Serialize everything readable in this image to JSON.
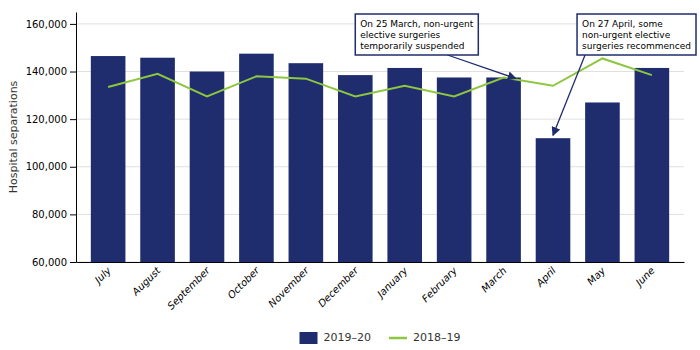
{
  "chart_data": {
    "type": "bar",
    "categories": [
      "July",
      "August",
      "September",
      "October",
      "November",
      "December",
      "January",
      "February",
      "March",
      "April",
      "May",
      "June"
    ],
    "series": [
      {
        "name": "2019–20",
        "type": "bar",
        "color": "#1f2d6e",
        "values": [
          146500,
          145800,
          140000,
          147500,
          143500,
          138500,
          141500,
          137500,
          137500,
          112000,
          127000,
          141500
        ]
      },
      {
        "name": "2018–19",
        "type": "line",
        "color": "#8dc63f",
        "values": [
          133500,
          139000,
          129500,
          138000,
          137000,
          129500,
          134000,
          129500,
          137500,
          134000,
          145500,
          138500
        ]
      }
    ],
    "ylabel": "Hospital separations",
    "ylim": [
      60000,
      165000
    ],
    "yticks": [
      {
        "value": 60000,
        "label": "60,000"
      },
      {
        "value": 80000,
        "label": "80,000"
      },
      {
        "value": 100000,
        "label": "100,000"
      },
      {
        "value": 120000,
        "label": "120,000"
      },
      {
        "value": 140000,
        "label": "140,000"
      },
      {
        "value": 160000,
        "label": "160,000"
      }
    ],
    "grid": true,
    "legend": "bottom",
    "annotations": [
      "On 25 March, non-urgent\nelective surgeries\ntemporarily suspended",
      "On 27 April, some\nnon-urgent elective\nsurgeries recommenced"
    ]
  }
}
